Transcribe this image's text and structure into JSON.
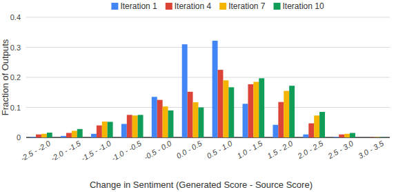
{
  "chart_data": {
    "type": "bar",
    "x_label": "Change in Sentiment (Generated Score - Source Score)",
    "y_label": "Fraction of Outputs",
    "categories": [
      "-2.5 - -2.0",
      "-2.0 - -1.5",
      "-1.5 - -1.0",
      "-1.0 - -0.5",
      "-0.5 - 0.0",
      "0.0 - 0.5",
      "0.5 - 1.0",
      "1.0 - 1.5",
      "1.5 - 2.0",
      "2.0 - 2.5",
      "2.5 - 3.0",
      "3.0 - 3.5"
    ],
    "series": [
      {
        "name": "Iteration 1",
        "color": "#4285f4",
        "values": [
          0.002,
          0.005,
          0.012,
          0.045,
          0.135,
          0.31,
          0.322,
          0.112,
          0.042,
          0.01,
          0.002,
          0.0
        ]
      },
      {
        "name": "Iteration 4",
        "color": "#db4437",
        "values": [
          0.01,
          0.015,
          0.04,
          0.075,
          0.125,
          0.152,
          0.225,
          0.177,
          0.118,
          0.047,
          0.01,
          0.001
        ]
      },
      {
        "name": "Iteration 7",
        "color": "#f4b400",
        "values": [
          0.012,
          0.022,
          0.053,
          0.073,
          0.103,
          0.117,
          0.19,
          0.185,
          0.155,
          0.073,
          0.012,
          0.001
        ]
      },
      {
        "name": "Iteration 10",
        "color": "#0f9d58",
        "values": [
          0.016,
          0.028,
          0.052,
          0.075,
          0.09,
          0.1,
          0.167,
          0.197,
          0.172,
          0.085,
          0.015,
          0.001
        ]
      }
    ],
    "ylim": [
      0,
      0.4
    ],
    "yticks": [
      0,
      0.1,
      0.2,
      0.3,
      0.4
    ],
    "grid": true,
    "legend": "top"
  }
}
